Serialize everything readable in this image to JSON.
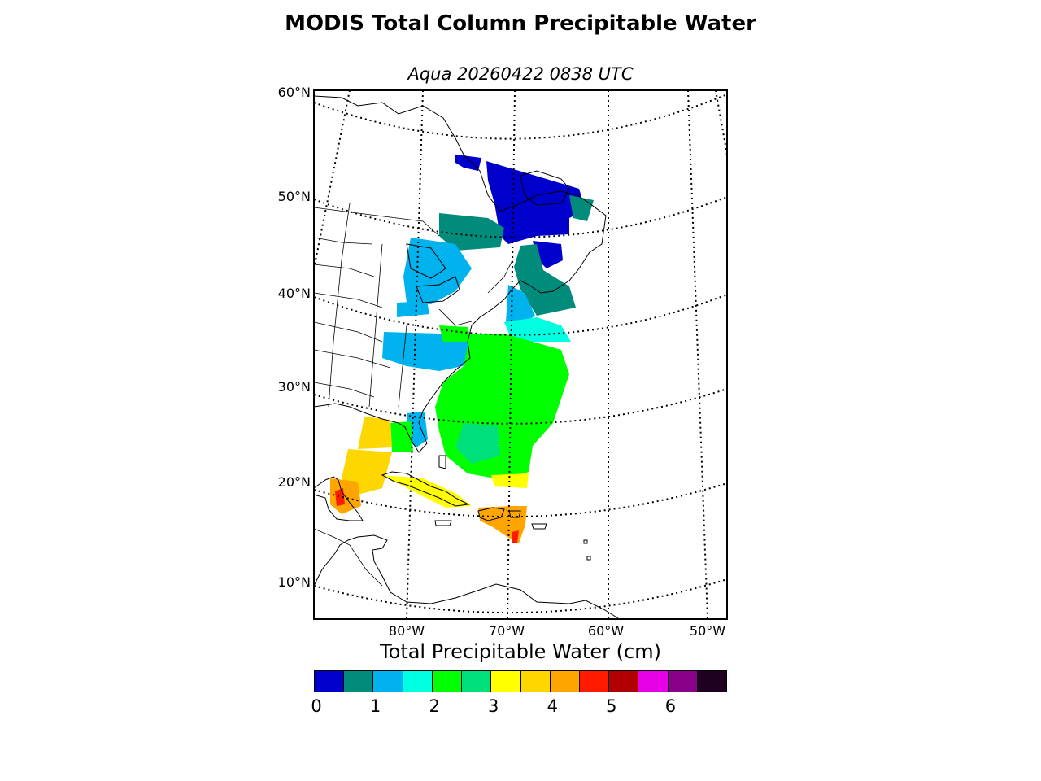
{
  "title": "MODIS Total Column Precipitable Water",
  "subtitle": "Aqua 20260422 0838 UTC",
  "map": {
    "projection": "conic",
    "lat_labels": [
      "60°N",
      "50°N",
      "40°N",
      "30°N",
      "20°N",
      "10°N"
    ],
    "lon_labels": [
      "80°W",
      "70°W",
      "60°W",
      "50°W"
    ],
    "graticule": "dotted"
  },
  "colorbar": {
    "title": "Total Precipitable Water (cm)",
    "colors": [
      "#0000cd",
      "#008b7a",
      "#00b2ee",
      "#00ffe0",
      "#00ff00",
      "#00e07a",
      "#ffff00",
      "#ffd700",
      "#ffa500",
      "#ff1a00",
      "#b00000",
      "#e600e6",
      "#8b008b",
      "#200020"
    ],
    "ticks": [
      "0",
      "1",
      "2",
      "3",
      "4",
      "5",
      "6"
    ]
  }
}
